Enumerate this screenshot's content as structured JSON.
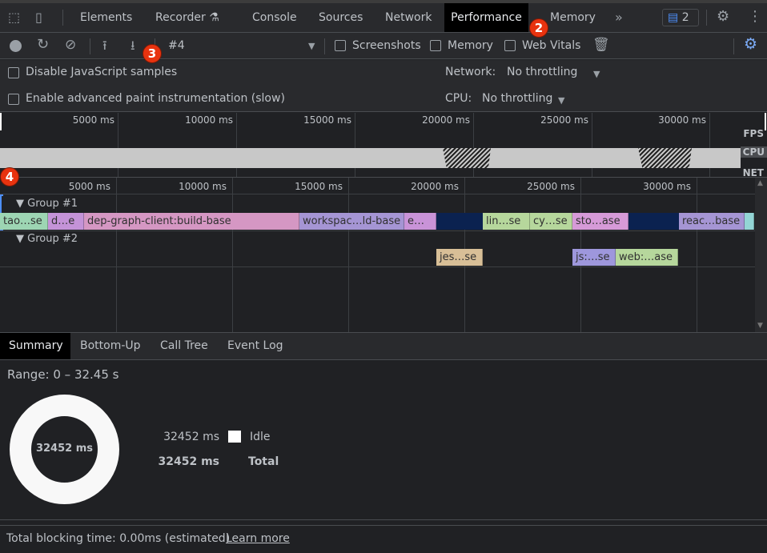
{
  "tabs": {
    "items": [
      "Elements",
      "Recorder",
      "Console",
      "Sources",
      "Network",
      "Performance",
      "Memory"
    ],
    "active": "Performance",
    "issues_count": "2"
  },
  "toolbar": {
    "recording_select": "#4",
    "screenshots_label": "Screenshots",
    "memory_label": "Memory",
    "web_vitals_label": "Web Vitals"
  },
  "settings": {
    "disable_js_samples": "Disable JavaScript samples",
    "advanced_paint": "Enable advanced paint instrumentation (slow)",
    "network_label": "Network:",
    "network_value": "No throttling",
    "cpu_label": "CPU:",
    "cpu_value": "No throttling"
  },
  "annotations": [
    "2",
    "3",
    "4"
  ],
  "overview": {
    "ticks": [
      "5000 ms",
      "10000 ms",
      "15000 ms",
      "20000 ms",
      "25000 ms",
      "30000 ms"
    ],
    "fps_label": "FPS",
    "cpu_label": "CPU",
    "net_label": "NET"
  },
  "timeline": {
    "ticks": [
      "5000 ms",
      "10000 ms",
      "15000 ms",
      "20000 ms",
      "25000 ms",
      "30000 ms"
    ],
    "group1": {
      "label": "Group #1",
      "bars": [
        {
          "label": "tao…se",
          "color": "#9dd5b3"
        },
        {
          "label": "d…e",
          "color": "#c493d8"
        },
        {
          "label": "dep-graph-client:build-base",
          "color": "#d597c3"
        },
        {
          "label": "workspac…ld-base",
          "color": "#a595d4"
        },
        {
          "label": "e…",
          "color": "#c993d8"
        },
        {
          "label": "lin…se",
          "color": "#b6d79c"
        },
        {
          "label": "cy…se",
          "color": "#b6d79c"
        },
        {
          "label": "sto…ase",
          "color": "#d69ad8"
        },
        {
          "label": "reac…base",
          "color": "#a595d4"
        },
        {
          "label": "",
          "color": "#93d5d5"
        }
      ]
    },
    "group2": {
      "label": "Group #2",
      "bars": [
        {
          "label": "jes…se",
          "color": "#d8bf97"
        },
        {
          "label": "js:…se",
          "color": "#9e97dc"
        },
        {
          "label": "web:…ase",
          "color": "#b6d79c"
        }
      ]
    }
  },
  "bottom_tabs": {
    "items": [
      "Summary",
      "Bottom-Up",
      "Call Tree",
      "Event Log"
    ],
    "active": "Summary"
  },
  "summary": {
    "range": "Range: 0 – 32.45 s",
    "donut_center": "32452 ms",
    "rows": [
      {
        "value": "32452 ms",
        "label": "Idle",
        "color": "#ffffff"
      },
      {
        "value": "32452 ms",
        "label": "Total"
      }
    ]
  },
  "footer": {
    "text": "Total blocking time: 0.00ms (estimated)",
    "link": "Learn more"
  }
}
